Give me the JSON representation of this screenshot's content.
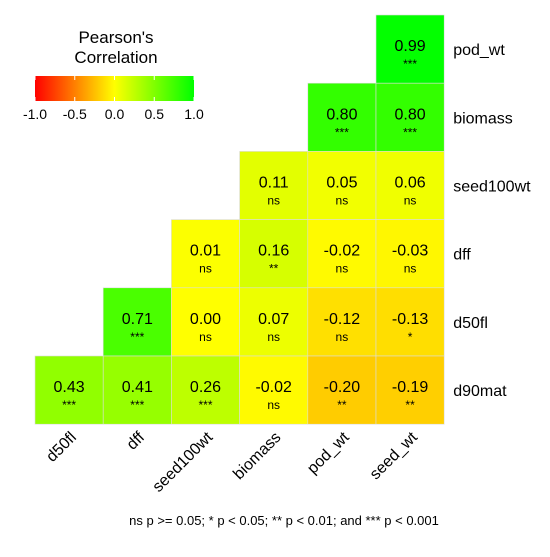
{
  "chart_data": {
    "type": "heatmap",
    "title": "",
    "legend": {
      "title_line1": "Pearson's",
      "title_line2": "Correlation",
      "ticks": [
        "-1.0",
        "-0.5",
        "0.0",
        "0.5",
        "1.0"
      ],
      "range": [
        -1,
        1
      ],
      "placement": "top-left",
      "colors": {
        "low": "#ff0000",
        "mid": "#ffff00",
        "high": "#00ff00"
      }
    },
    "x_labels": [
      "d50fl",
      "dff",
      "seed100wt",
      "biomass",
      "pod_wt",
      "seed_wt"
    ],
    "y_labels": [
      "pod_wt",
      "biomass",
      "seed100wt",
      "dff",
      "d50fl",
      "d90mat"
    ],
    "cells": [
      {
        "x": "seed_wt",
        "y": "pod_wt",
        "value": 0.99,
        "label": "0.99",
        "sig": "***"
      },
      {
        "x": "pod_wt",
        "y": "biomass",
        "value": 0.8,
        "label": "0.80",
        "sig": "***"
      },
      {
        "x": "seed_wt",
        "y": "biomass",
        "value": 0.8,
        "label": "0.80",
        "sig": "***"
      },
      {
        "x": "biomass",
        "y": "seed100wt",
        "value": 0.11,
        "label": "0.11",
        "sig": "ns"
      },
      {
        "x": "pod_wt",
        "y": "seed100wt",
        "value": 0.05,
        "label": "0.05",
        "sig": "ns"
      },
      {
        "x": "seed_wt",
        "y": "seed100wt",
        "value": 0.06,
        "label": "0.06",
        "sig": "ns"
      },
      {
        "x": "seed100wt",
        "y": "dff",
        "value": 0.01,
        "label": "0.01",
        "sig": "ns"
      },
      {
        "x": "biomass",
        "y": "dff",
        "value": 0.16,
        "label": "0.16",
        "sig": "**"
      },
      {
        "x": "pod_wt",
        "y": "dff",
        "value": -0.02,
        "label": "-0.02",
        "sig": "ns"
      },
      {
        "x": "seed_wt",
        "y": "dff",
        "value": -0.03,
        "label": "-0.03",
        "sig": "ns"
      },
      {
        "x": "dff",
        "y": "d50fl",
        "value": 0.71,
        "label": "0.71",
        "sig": "***"
      },
      {
        "x": "seed100wt",
        "y": "d50fl",
        "value": 0.0,
        "label": "0.00",
        "sig": "ns"
      },
      {
        "x": "biomass",
        "y": "d50fl",
        "value": 0.07,
        "label": "0.07",
        "sig": "ns"
      },
      {
        "x": "pod_wt",
        "y": "d50fl",
        "value": -0.12,
        "label": "-0.12",
        "sig": "ns"
      },
      {
        "x": "seed_wt",
        "y": "d50fl",
        "value": -0.13,
        "label": "-0.13",
        "sig": "*"
      },
      {
        "x": "d50fl",
        "y": "d90mat",
        "value": 0.43,
        "label": "0.43",
        "sig": "***"
      },
      {
        "x": "dff",
        "y": "d90mat",
        "value": 0.41,
        "label": "0.41",
        "sig": "***"
      },
      {
        "x": "seed100wt",
        "y": "d90mat",
        "value": 0.26,
        "label": "0.26",
        "sig": "***"
      },
      {
        "x": "biomass",
        "y": "d90mat",
        "value": -0.02,
        "label": "-0.02",
        "sig": "ns"
      },
      {
        "x": "pod_wt",
        "y": "d90mat",
        "value": -0.2,
        "label": "-0.20",
        "sig": "**"
      },
      {
        "x": "seed_wt",
        "y": "d90mat",
        "value": -0.19,
        "label": "-0.19",
        "sig": "**"
      }
    ],
    "footnote": "ns p >= 0.05; * p < 0.05; ** p < 0.01; and *** p < 0.001"
  }
}
